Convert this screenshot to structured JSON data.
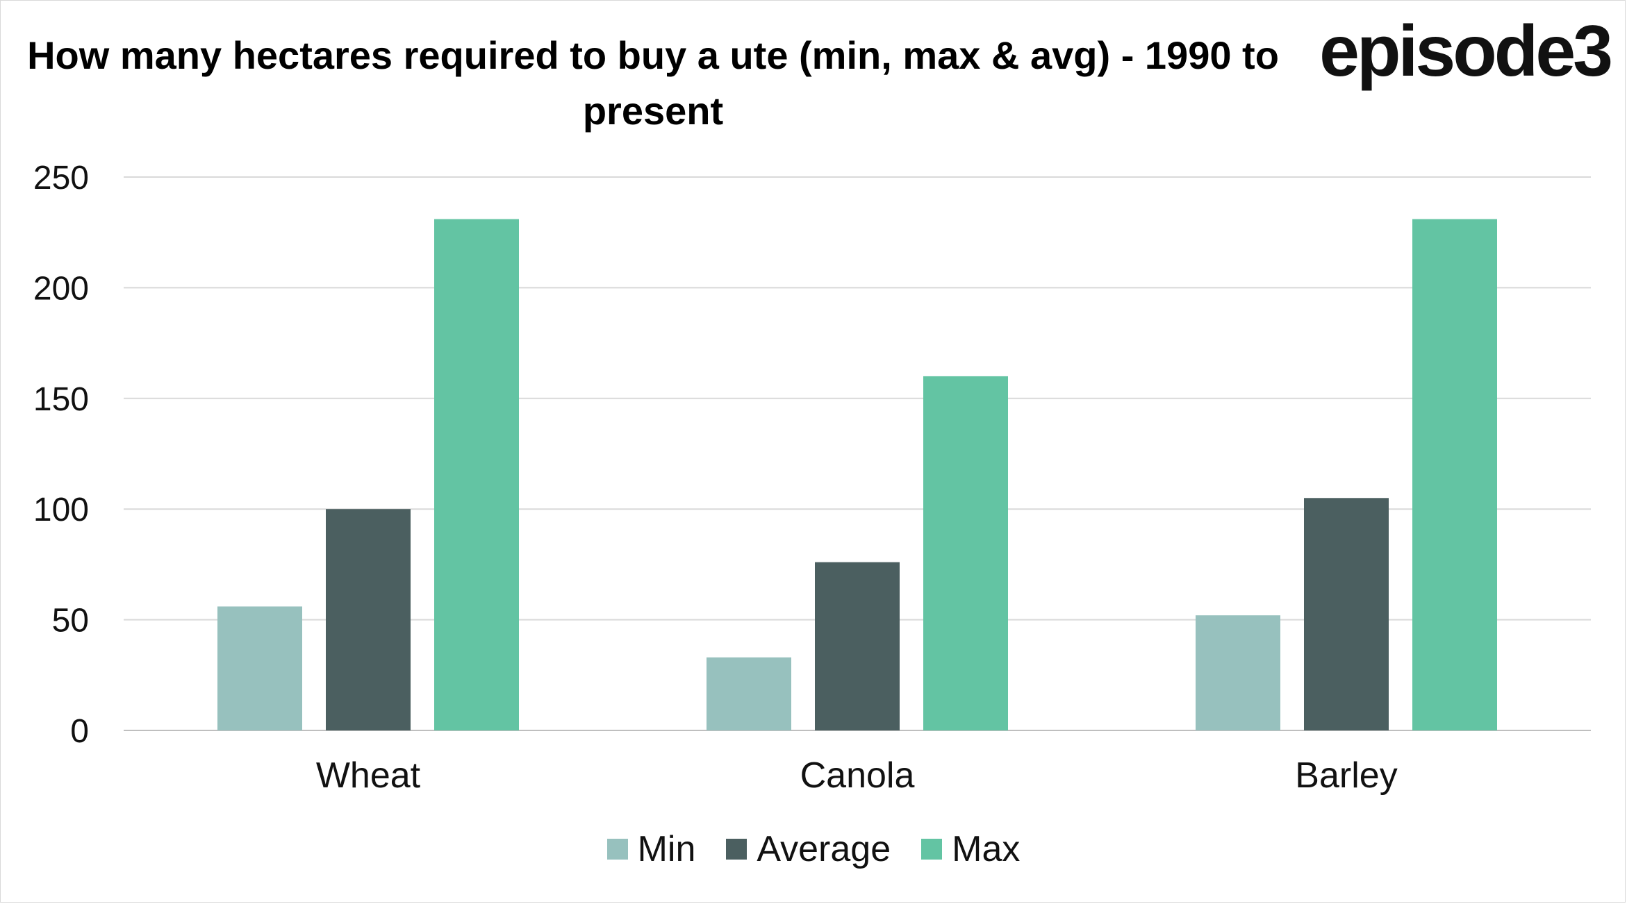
{
  "logo_text": "episode3",
  "chart_data": {
    "type": "bar",
    "title": "How many hectares required to buy a ute (min, max & avg) - 1990 to present",
    "categories": [
      "Wheat",
      "Canola",
      "Barley"
    ],
    "series": [
      {
        "name": "Min",
        "color": "#97c1be",
        "values": [
          56,
          33,
          52
        ]
      },
      {
        "name": "Average",
        "color": "#4b5f60",
        "values": [
          100,
          76,
          105
        ]
      },
      {
        "name": "Max",
        "color": "#63c4a3",
        "values": [
          231,
          160,
          231
        ]
      }
    ],
    "yticks": [
      "0",
      "50",
      "100",
      "150",
      "200",
      "250"
    ],
    "ylim": [
      0,
      250
    ],
    "xlabel": "",
    "ylabel": "",
    "grid": true,
    "legend_position": "bottom"
  }
}
